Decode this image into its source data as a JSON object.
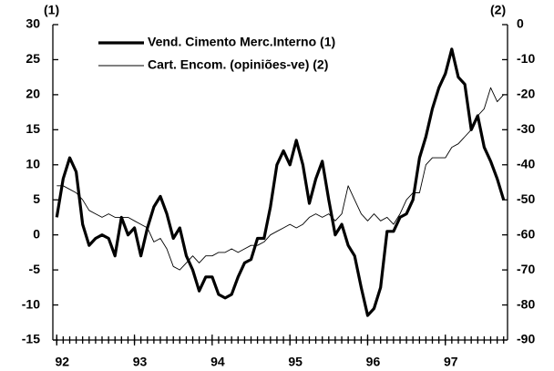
{
  "chart_data": {
    "type": "line",
    "y_label": "(1)",
    "y2_label": "(2)",
    "x": [
      92,
      92.083,
      92.167,
      92.25,
      92.333,
      92.417,
      92.5,
      92.583,
      92.667,
      92.75,
      92.833,
      92.917,
      93,
      93.083,
      93.167,
      93.25,
      93.333,
      93.417,
      93.5,
      93.583,
      93.667,
      93.75,
      93.833,
      93.917,
      94,
      94.083,
      94.167,
      94.25,
      94.333,
      94.417,
      94.5,
      94.583,
      94.667,
      94.75,
      94.833,
      94.917,
      95,
      95.083,
      95.167,
      95.25,
      95.333,
      95.417,
      95.5,
      95.583,
      95.667,
      95.75,
      95.833,
      95.917,
      96,
      96.083,
      96.167,
      96.25,
      96.333,
      96.417,
      96.5,
      96.583,
      96.667,
      96.75,
      96.833,
      96.917,
      97,
      97.083,
      97.167,
      97.25,
      97.333,
      97.417,
      97.5,
      97.583,
      97.667,
      97.75
    ],
    "series": [
      {
        "name": "Vend. Cimento Merc.Interno (1)",
        "color": "#000000",
        "width": 3.2,
        "values": [
          2.5,
          8,
          11,
          9,
          1.5,
          -1.5,
          -0.5,
          0,
          -0.5,
          -3,
          2.5,
          0,
          1,
          -3,
          1,
          4,
          5.5,
          3,
          -0.5,
          1,
          -3,
          -5,
          -8,
          -6,
          -6,
          -8.5,
          -9,
          -8.5,
          -6,
          -4,
          -3.5,
          -0.5,
          -0.5,
          4,
          10,
          12,
          10,
          13.5,
          10,
          4.5,
          8,
          10.5,
          5,
          0,
          1.5,
          -1.5,
          -3,
          -7.5,
          -11.5,
          -10.5,
          -7.5,
          0.5,
          0.5,
          2.5,
          3,
          5,
          11,
          14,
          18,
          21,
          23,
          26.5,
          22.5,
          21.5,
          15,
          17,
          12.5,
          10.5,
          8,
          5
        ]
      },
      {
        "name": "Cart. Encom. (opiniões-ve) (2)",
        "color": "#000000",
        "width": 0.9,
        "axis": "y2",
        "values": [
          -46,
          -46,
          -47,
          -48,
          -50,
          -53,
          -54,
          -55,
          -54,
          -55,
          -55,
          -55,
          -56,
          -57,
          -58,
          -62,
          -61,
          -64,
          -69,
          -70,
          -68,
          -66,
          -68,
          -66,
          -66,
          -65,
          -65,
          -64,
          -65,
          -64,
          -63,
          -63,
          -62,
          -60,
          -59,
          -58,
          -57,
          -58,
          -57,
          -55,
          -54,
          -55,
          -54,
          -56,
          -54,
          -46,
          -50,
          -54,
          -56,
          -54,
          -56,
          -55,
          -57,
          -54,
          -50,
          -48,
          -48,
          -40,
          -38,
          -38,
          -38,
          -35,
          -34,
          -32,
          -30,
          -26,
          -24,
          -18,
          -22,
          -20
        ]
      }
    ],
    "xlim": [
      91.95,
      97.8
    ],
    "xticks": [
      92,
      93,
      94,
      95,
      96,
      97
    ],
    "ylim": [
      -15,
      30
    ],
    "yticks": [
      -15,
      -10,
      -5,
      0,
      5,
      10,
      15,
      20,
      25,
      30
    ],
    "y2lim": [
      -90,
      0
    ],
    "y2ticks": [
      -90,
      -80,
      -70,
      -60,
      -50,
      -40,
      -30,
      -20,
      -10,
      0
    ],
    "legend": "top"
  }
}
